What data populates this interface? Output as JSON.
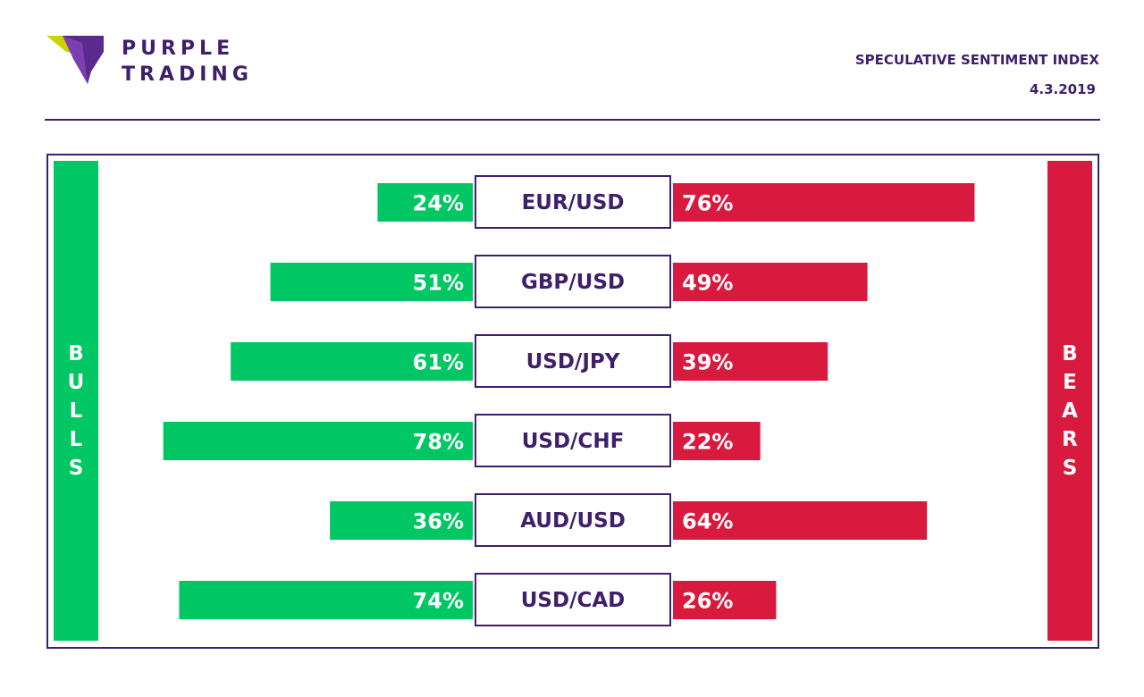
{
  "brand": {
    "line1": "PURPLE",
    "line2": "TRADING"
  },
  "header": {
    "title": "SPECULATIVE SENTIMENT INDEX",
    "date": "4.3.2019"
  },
  "sides": {
    "bulls": [
      "B",
      "U",
      "L",
      "L",
      "S"
    ],
    "bears": [
      "B",
      "E",
      "A",
      "R",
      "S"
    ]
  },
  "colors": {
    "bulls": "#00c764",
    "bears": "#d91a3f",
    "brand": "#3f1f6b"
  },
  "chart_data": {
    "type": "bar",
    "categories": [
      "EUR/USD",
      "GBP/USD",
      "USD/JPY",
      "USD/CHF",
      "AUD/USD",
      "USD/CAD"
    ],
    "series": [
      {
        "name": "BULLS",
        "values": [
          24,
          51,
          61,
          78,
          36,
          74
        ]
      },
      {
        "name": "BEARS",
        "values": [
          76,
          49,
          39,
          22,
          64,
          26
        ]
      }
    ],
    "value_labels": {
      "BULLS": [
        "24%",
        "51%",
        "61%",
        "78%",
        "36%",
        "74%"
      ],
      "BEARS": [
        "76%",
        "49%",
        "39%",
        "22%",
        "64%",
        "26%"
      ]
    },
    "unit": "%",
    "xlim": [
      0,
      100
    ],
    "orientation": "diverging-horizontal"
  }
}
